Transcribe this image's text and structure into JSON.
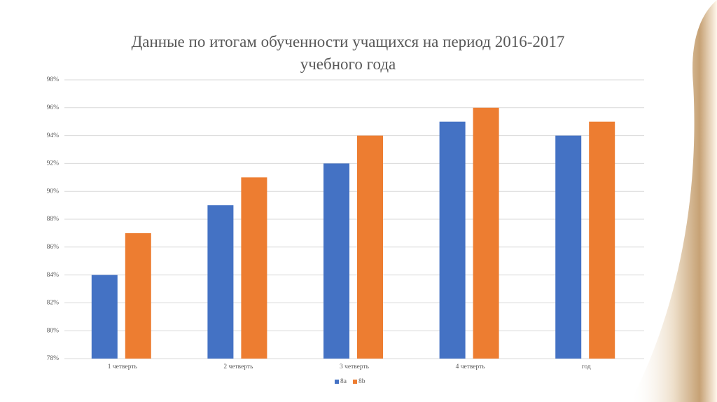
{
  "chart_data": {
    "type": "bar",
    "title": "Данные по итогам обученности учащихся на период  2016-2017 учебного года",
    "categories": [
      "1 четверть",
      "2 четверть",
      "3 четверть",
      "4 четверть",
      "год"
    ],
    "series": [
      {
        "name": "8a",
        "color": "#4472c4",
        "values": [
          84,
          89,
          92,
          95,
          94
        ]
      },
      {
        "name": "8b",
        "color": "#ed7d31",
        "values": [
          87,
          91,
          94,
          96,
          95
        ]
      }
    ],
    "ylim": [
      78,
      98
    ],
    "yticks": [
      {
        "value": 78,
        "label": "78%"
      },
      {
        "value": 80,
        "label": "80%"
      },
      {
        "value": 82,
        "label": "82%"
      },
      {
        "value": 84,
        "label": "84%"
      },
      {
        "value": 86,
        "label": "86%"
      },
      {
        "value": 88,
        "label": "88%"
      },
      {
        "value": 90,
        "label": "90%"
      },
      {
        "value": 92,
        "label": "92%"
      },
      {
        "value": 94,
        "label": "94%"
      },
      {
        "value": 96,
        "label": "96%"
      },
      {
        "value": 98,
        "label": "98%"
      }
    ],
    "grid": true,
    "legend": "bottom"
  }
}
